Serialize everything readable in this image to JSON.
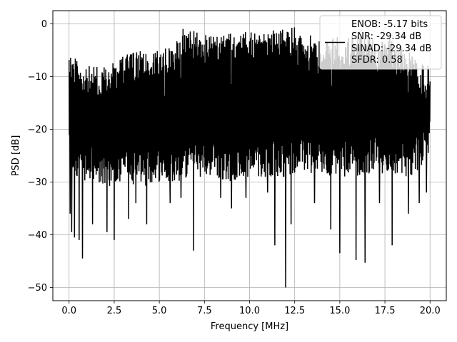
{
  "chart_data": {
    "type": "line",
    "title": "",
    "xlabel": "Frequency [MHz]",
    "ylabel": "PSD [dB]",
    "xlim": [
      -0.9,
      20.9
    ],
    "ylim": [
      -52.5,
      2.5
    ],
    "x_ticks": [
      0.0,
      2.5,
      5.0,
      7.5,
      10.0,
      12.5,
      15.0,
      17.5,
      20.0
    ],
    "x_tick_labels": [
      "0.0",
      "2.5",
      "5.0",
      "7.5",
      "10.0",
      "12.5",
      "15.0",
      "17.5",
      "20.0"
    ],
    "y_ticks": [
      0,
      -10,
      -20,
      -30,
      -40,
      -50
    ],
    "y_tick_labels": [
      "0",
      "−10",
      "−20",
      "−30",
      "−40",
      "−50"
    ],
    "grid": true,
    "line_color": "#000000",
    "legend": {
      "placement": "upper right",
      "entries": [
        "ENOB: -5.17 bits",
        "SNR: -29.34 dB",
        "SINAD: -29.34 dB",
        "SFDR: 0.58"
      ]
    },
    "series": [
      {
        "x_start": 0.0,
        "x_end": 20.0,
        "upper_envelope": [
          [
            0.0,
            -5
          ],
          [
            1.0,
            -8
          ],
          [
            2.0,
            -8
          ],
          [
            3.0,
            -6
          ],
          [
            4.0,
            -5
          ],
          [
            5.0,
            -5
          ],
          [
            6.0,
            -3
          ],
          [
            6.3,
            -0.5
          ],
          [
            8.0,
            -2
          ],
          [
            10.0,
            -1.5
          ],
          [
            12.0,
            -1
          ],
          [
            12.5,
            -0.5
          ],
          [
            14.0,
            -3
          ],
          [
            15.5,
            -2
          ],
          [
            16.5,
            -2
          ],
          [
            17.5,
            -2
          ],
          [
            18.5,
            -4
          ],
          [
            19.3,
            -6
          ],
          [
            20.0,
            -8
          ]
        ],
        "lower_envelope": [
          [
            0.0,
            -28
          ],
          [
            1.0,
            -30
          ],
          [
            2.0,
            -31
          ],
          [
            3.0,
            -30
          ],
          [
            4.0,
            -31
          ],
          [
            5.0,
            -30
          ],
          [
            6.0,
            -30
          ],
          [
            7.0,
            -29
          ],
          [
            8.0,
            -29
          ],
          [
            9.0,
            -30
          ],
          [
            10.0,
            -29
          ],
          [
            11.0,
            -29
          ],
          [
            12.0,
            -29
          ],
          [
            13.0,
            -28
          ],
          [
            14.0,
            -29
          ],
          [
            15.0,
            -29
          ],
          [
            16.0,
            -29
          ],
          [
            17.0,
            -28
          ],
          [
            18.0,
            -29
          ],
          [
            19.0,
            -29
          ],
          [
            20.0,
            -25
          ]
        ],
        "deep_dips": [
          [
            0.05,
            -36
          ],
          [
            0.15,
            -39.5
          ],
          [
            0.3,
            -40.5
          ],
          [
            0.55,
            -41
          ],
          [
            0.75,
            -44.5
          ],
          [
            1.3,
            -38
          ],
          [
            2.1,
            -39.5
          ],
          [
            2.5,
            -41
          ],
          [
            3.3,
            -37
          ],
          [
            3.7,
            -34
          ],
          [
            4.3,
            -38
          ],
          [
            5.6,
            -34
          ],
          [
            6.2,
            -33
          ],
          [
            6.9,
            -43
          ],
          [
            8.4,
            -33
          ],
          [
            9.0,
            -35
          ],
          [
            9.8,
            -33
          ],
          [
            11.0,
            -32
          ],
          [
            11.4,
            -42
          ],
          [
            12.0,
            -50
          ],
          [
            12.3,
            -38
          ],
          [
            13.6,
            -34
          ],
          [
            14.5,
            -39
          ],
          [
            15.0,
            -43.5
          ],
          [
            15.9,
            -44.8
          ],
          [
            16.4,
            -45.3
          ],
          [
            17.2,
            -34
          ],
          [
            17.9,
            -42
          ],
          [
            18.8,
            -36
          ],
          [
            19.4,
            -34
          ],
          [
            19.8,
            -32
          ]
        ]
      }
    ]
  }
}
